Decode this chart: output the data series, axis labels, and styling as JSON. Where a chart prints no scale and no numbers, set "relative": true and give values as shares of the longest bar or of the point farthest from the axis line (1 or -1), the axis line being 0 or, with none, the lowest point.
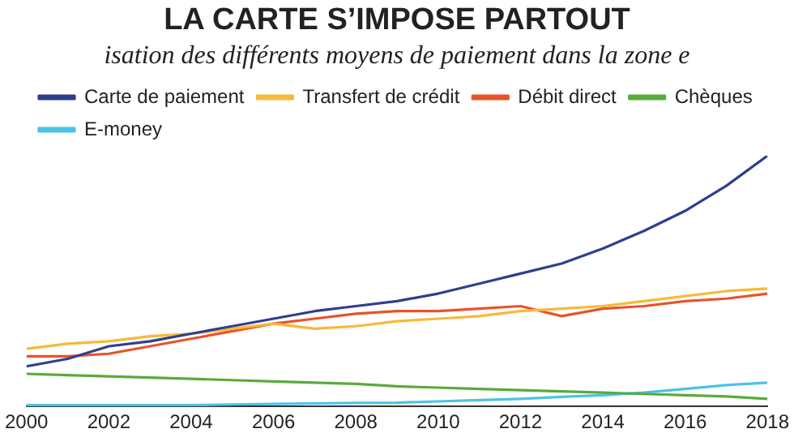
{
  "chart_data": {
    "type": "line",
    "title": "LA CARTE S’IMPOSE PARTOUT",
    "subtitle": "isation des différents moyens de paiement dans la zone e",
    "relative": true,
    "x": [
      2000,
      2001,
      2002,
      2003,
      2004,
      2005,
      2006,
      2007,
      2008,
      2009,
      2010,
      2011,
      2012,
      2013,
      2014,
      2015,
      2016,
      2017,
      2018
    ],
    "xlim": [
      2000,
      2018
    ],
    "xticks": [
      2000,
      2002,
      2004,
      2006,
      2008,
      2010,
      2012,
      2014,
      2016,
      2018
    ],
    "series": [
      {
        "name": "Carte de paiement",
        "color": "#2e3f8f",
        "values": [
          0.16,
          0.19,
          0.24,
          0.26,
          0.29,
          0.32,
          0.35,
          0.38,
          0.4,
          0.42,
          0.45,
          0.49,
          0.53,
          0.57,
          0.63,
          0.7,
          0.78,
          0.88,
          1.0
        ]
      },
      {
        "name": "Transfert de crédit",
        "color": "#f6b93b",
        "values": [
          0.23,
          0.25,
          0.26,
          0.28,
          0.29,
          0.31,
          0.33,
          0.31,
          0.32,
          0.34,
          0.35,
          0.36,
          0.38,
          0.39,
          0.4,
          0.42,
          0.44,
          0.46,
          0.47
        ]
      },
      {
        "name": "Débit direct",
        "color": "#e8532b",
        "values": [
          0.2,
          0.2,
          0.21,
          0.24,
          0.27,
          0.3,
          0.33,
          0.35,
          0.37,
          0.38,
          0.38,
          0.39,
          0.4,
          0.36,
          0.39,
          0.4,
          0.42,
          0.43,
          0.45
        ]
      },
      {
        "name": "Chèques",
        "color": "#5aaa3c",
        "values": [
          0.13,
          0.125,
          0.12,
          0.115,
          0.11,
          0.105,
          0.1,
          0.095,
          0.09,
          0.08,
          0.075,
          0.07,
          0.065,
          0.06,
          0.055,
          0.05,
          0.045,
          0.04,
          0.03
        ]
      },
      {
        "name": "E-money",
        "color": "#4cc3e6",
        "values": [
          0.005,
          0.005,
          0.005,
          0.005,
          0.005,
          0.008,
          0.01,
          0.012,
          0.014,
          0.015,
          0.02,
          0.025,
          0.03,
          0.038,
          0.045,
          0.055,
          0.07,
          0.085,
          0.095
        ]
      }
    ],
    "legend": "top left",
    "marker": "none",
    "line_style": "solid"
  }
}
